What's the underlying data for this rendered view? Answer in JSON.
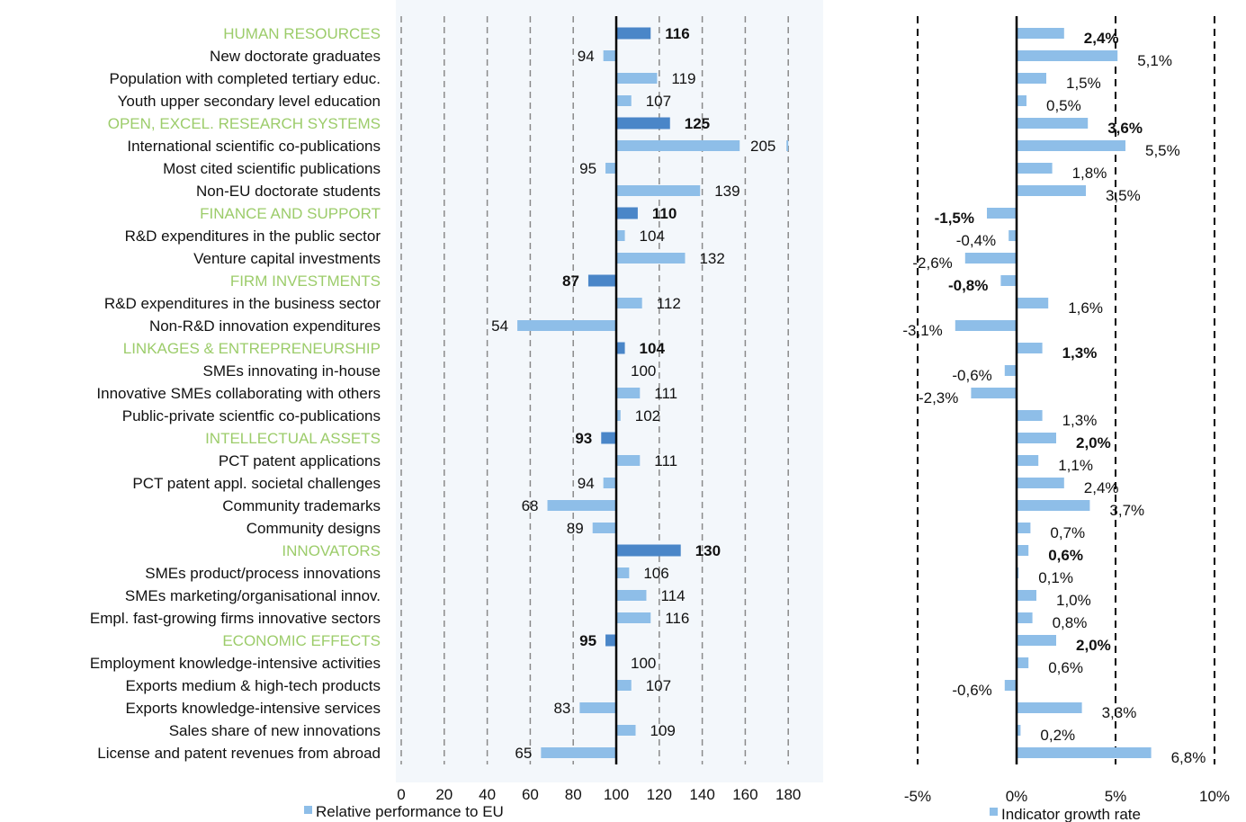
{
  "colors": {
    "category_label": "#9ccc6a",
    "indicator_label": "#111111",
    "bar_category": "#4a86c8",
    "bar_indicator": "#8ebee8",
    "grid": "#8a8a8a",
    "axis": "#000000",
    "left_panel_bg": "#f3f7fb"
  },
  "chart_data": [
    {
      "type": "bar",
      "orientation": "horizontal",
      "categories": [
        "HUMAN RESOURCES",
        "New doctorate graduates",
        "Population with completed tertiary educ.",
        "Youth upper secondary level education",
        "OPEN, EXCEL. RESEARCH SYSTEMS",
        "International scientific co-publications",
        "Most cited scientific publications",
        "Non-EU doctorate students",
        "FINANCE AND SUPPORT",
        "R&D expenditures in the public sector",
        "Venture capital investments",
        "FIRM INVESTMENTS",
        "R&D expenditures in the business sector",
        "Non-R&D innovation expenditures",
        "LINKAGES & ENTREPRENEURSHIP",
        "SMEs innovating in-house",
        "Innovative SMEs collaborating with others",
        "Public-private scientfic co-publications",
        "INTELLECTUAL ASSETS",
        "PCT patent applications",
        "PCT patent appl. societal challenges",
        "Community trademarks",
        "Community designs",
        "INNOVATORS",
        "SMEs product/process innovations",
        "SMEs marketing/organisational innov.",
        "Empl. fast-growing firms innovative sectors",
        "ECONOMIC EFFECTS",
        "Employment knowledge-intensive activities",
        "Exports medium & high-tech products",
        "Exports knowledge-intensive services",
        "Sales share of new innovations",
        "License and patent revenues from abroad"
      ],
      "is_group_header": [
        true,
        false,
        false,
        false,
        true,
        false,
        false,
        false,
        true,
        false,
        false,
        true,
        false,
        false,
        true,
        false,
        false,
        false,
        true,
        false,
        false,
        false,
        false,
        true,
        false,
        false,
        false,
        true,
        false,
        false,
        false,
        false,
        false
      ],
      "series": [
        {
          "name": "Relative performance to EU",
          "values": [
            116,
            94,
            119,
            107,
            125,
            205,
            95,
            139,
            110,
            104,
            132,
            87,
            112,
            54,
            104,
            100,
            111,
            102,
            93,
            111,
            94,
            68,
            89,
            130,
            106,
            114,
            116,
            95,
            100,
            107,
            83,
            109,
            65
          ],
          "labels": [
            "116",
            "94",
            "119",
            "107",
            "125",
            "205",
            "95",
            "139",
            "110",
            "104",
            "132",
            "87",
            "112",
            "54",
            "104",
            "100",
            "111",
            "102",
            "93",
            "111",
            "94",
            "68",
            "89",
            "130",
            "106",
            "114",
            "116",
            "95",
            "100",
            "107",
            "83",
            "109",
            "65"
          ]
        }
      ],
      "baseline": 100,
      "xlim": [
        0,
        180
      ],
      "axis_break": [
        180,
        205
      ],
      "x_ticks": [
        "0",
        "20",
        "40",
        "60",
        "80",
        "100",
        "120",
        "140",
        "160",
        "180"
      ],
      "grid": true,
      "legend": "bottom-left"
    },
    {
      "type": "bar",
      "orientation": "horizontal",
      "series": [
        {
          "name": "Indicator growth rate",
          "values": [
            2.4,
            5.1,
            1.5,
            0.5,
            3.6,
            5.5,
            1.8,
            3.5,
            -1.5,
            -0.4,
            -2.6,
            -0.8,
            1.6,
            -3.1,
            1.3,
            -0.6,
            -2.3,
            1.3,
            2.0,
            1.1,
            2.4,
            3.7,
            0.7,
            0.6,
            0.1,
            1.0,
            0.8,
            2.0,
            0.6,
            -0.6,
            3.3,
            0.2,
            6.8
          ],
          "labels": [
            "2,4%",
            "5,1%",
            "1,5%",
            "0,5%",
            "3,6%",
            "5,5%",
            "1,8%",
            "3,5%",
            "-1,5%",
            "-0,4%",
            "-2,6%",
            "-0,8%",
            "1,6%",
            "-3,1%",
            "1,3%",
            "-0,6%",
            "-2,3%",
            "1,3%",
            "2,0%",
            "1,1%",
            "2,4%",
            "3,7%",
            "0,7%",
            "0,6%",
            "0,1%",
            "1,0%",
            "0,8%",
            "2,0%",
            "0,6%",
            "-0,6%",
            "3,3%",
            "0,2%",
            "6,8%"
          ]
        }
      ],
      "xlim": [
        -5,
        10
      ],
      "x_ticks": [
        "-5%",
        "0%",
        "5%",
        "10%"
      ],
      "grid": true,
      "legend": "bottom"
    }
  ]
}
